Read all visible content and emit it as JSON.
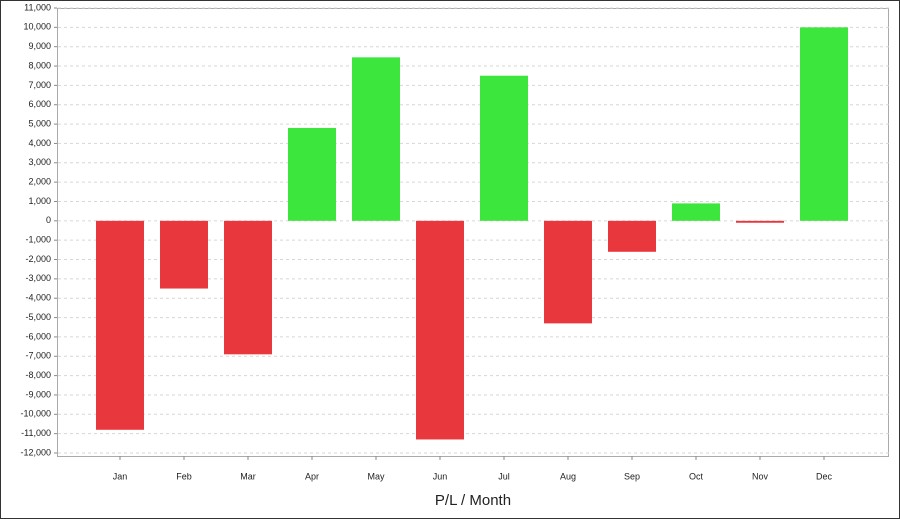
{
  "chart_data": {
    "type": "bar",
    "x_label": "P/L / Month",
    "categories": [
      "Jan",
      "Feb",
      "Mar",
      "Apr",
      "May",
      "Jun",
      "Jul",
      "Aug",
      "Sep",
      "Oct",
      "Nov",
      "Dec"
    ],
    "values": [
      -10800,
      -3500,
      -6900,
      4800,
      8450,
      -11300,
      7500,
      -5300,
      -1600,
      900,
      -100,
      10000
    ],
    "positive_color": "#3de63d",
    "negative_color": "#e8383d",
    "ylim": [
      -12000,
      11000
    ],
    "yticks": [
      {
        "value": -12000,
        "label": "-12,000"
      },
      {
        "value": -11000,
        "label": "-11,000"
      },
      {
        "value": -10000,
        "label": "-10,000"
      },
      {
        "value": -9000,
        "label": "-9,000"
      },
      {
        "value": -8000,
        "label": "-8,000"
      },
      {
        "value": -7000,
        "label": "-7,000"
      },
      {
        "value": -6000,
        "label": "-6,000"
      },
      {
        "value": -5000,
        "label": "-5,000"
      },
      {
        "value": -4000,
        "label": "-4,000"
      },
      {
        "value": -3000,
        "label": "-3,000"
      },
      {
        "value": -2000,
        "label": "-2,000"
      },
      {
        "value": -1000,
        "label": "-1,000"
      },
      0,
      {
        "value": 1000,
        "label": "1,000"
      },
      {
        "value": 2000,
        "label": "2,000"
      },
      {
        "value": 3000,
        "label": "3,000"
      },
      {
        "value": 4000,
        "label": "4,000"
      },
      {
        "value": 5000,
        "label": "5,000"
      },
      {
        "value": 6000,
        "label": "6,000"
      },
      {
        "value": 7000,
        "label": "7,000"
      },
      {
        "value": 8000,
        "label": "8,000"
      },
      {
        "value": 9000,
        "label": "9,000"
      },
      {
        "value": 10000,
        "label": "10,000"
      },
      {
        "value": 11000,
        "label": "11,000"
      }
    ],
    "grid": true
  }
}
